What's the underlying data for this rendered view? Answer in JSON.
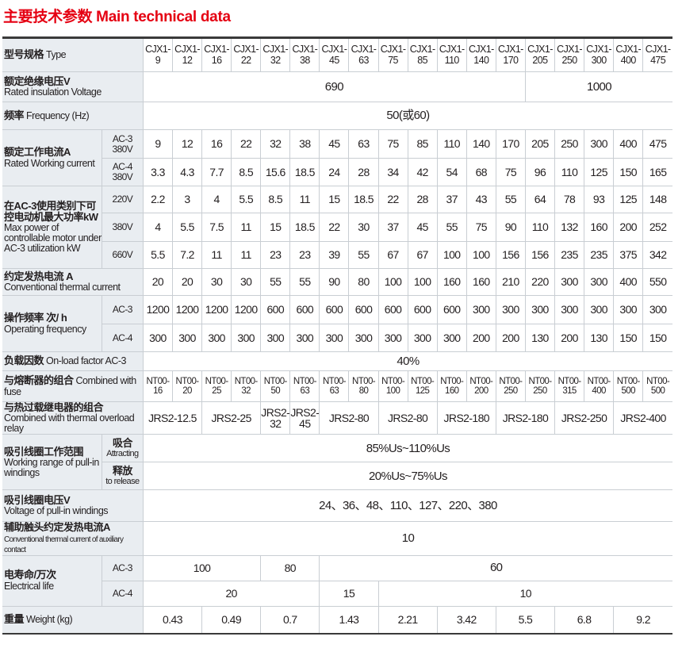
{
  "title": "主要技术参数 Main technical data",
  "header": {
    "label_cn": "型号规格",
    "label_en": "Type",
    "models": [
      "CJX1-9",
      "CJX1-12",
      "CJX1-16",
      "CJX1-22",
      "CJX1-32",
      "CJX1-38",
      "CJX1-45",
      "CJX1-63",
      "CJX1-75",
      "CJX1-85",
      "CJX1-110",
      "CJX1-140",
      "CJX1-170",
      "CJX1-205",
      "CJX1-250",
      "CJX1-300",
      "CJX1-400",
      "CJX1-475"
    ]
  },
  "sections": [
    {
      "label_cn": "额定绝缘电压V",
      "label_en": "Rated insulation Voltage",
      "rows": [
        {
          "sub": "",
          "cells": [
            [
              "690",
              13
            ],
            [
              "1000",
              5
            ]
          ]
        }
      ]
    },
    {
      "label_cn": "频率",
      "label_en": "Frequency  (Hz)",
      "inline": true,
      "rows": [
        {
          "sub": "",
          "cells": [
            [
              "50(或60)",
              18
            ]
          ]
        }
      ]
    },
    {
      "label_cn": "额定工作电流A",
      "label_en": "Rated Working current",
      "rows": [
        {
          "sub": "AC-3 380V",
          "cells": [
            [
              "9"
            ],
            [
              "12"
            ],
            [
              "16"
            ],
            [
              "22"
            ],
            [
              "32"
            ],
            [
              "38"
            ],
            [
              "45"
            ],
            [
              "63"
            ],
            [
              "75"
            ],
            [
              "85"
            ],
            [
              "110"
            ],
            [
              "140"
            ],
            [
              "170"
            ],
            [
              "205"
            ],
            [
              "250"
            ],
            [
              "300"
            ],
            [
              "400"
            ],
            [
              "475"
            ]
          ]
        },
        {
          "sub": "AC-4 380V",
          "cells": [
            [
              "3.3"
            ],
            [
              "4.3"
            ],
            [
              "7.7"
            ],
            [
              "8.5"
            ],
            [
              "15.6"
            ],
            [
              "18.5"
            ],
            [
              "24"
            ],
            [
              "28"
            ],
            [
              "34"
            ],
            [
              "42"
            ],
            [
              "54"
            ],
            [
              "68"
            ],
            [
              "75"
            ],
            [
              "96"
            ],
            [
              "110"
            ],
            [
              "125"
            ],
            [
              "150"
            ],
            [
              "165"
            ]
          ]
        }
      ]
    },
    {
      "label_cn": "在AC-3使用类别下可控电动机最大功率kW",
      "label_en": "Max power of controllable motor under AC-3 utilization kW",
      "rows": [
        {
          "sub": "220V",
          "cells": [
            [
              "2.2"
            ],
            [
              "3"
            ],
            [
              "4"
            ],
            [
              "5.5"
            ],
            [
              "8.5"
            ],
            [
              "11"
            ],
            [
              "15"
            ],
            [
              "18.5"
            ],
            [
              "22"
            ],
            [
              "28"
            ],
            [
              "37"
            ],
            [
              "43"
            ],
            [
              "55"
            ],
            [
              "64"
            ],
            [
              "78"
            ],
            [
              "93"
            ],
            [
              "125"
            ],
            [
              "148"
            ]
          ]
        },
        {
          "sub": "380V",
          "cells": [
            [
              "4"
            ],
            [
              "5.5"
            ],
            [
              "7.5"
            ],
            [
              "11"
            ],
            [
              "15"
            ],
            [
              "18.5"
            ],
            [
              "22"
            ],
            [
              "30"
            ],
            [
              "37"
            ],
            [
              "45"
            ],
            [
              "55"
            ],
            [
              "75"
            ],
            [
              "90"
            ],
            [
              "110"
            ],
            [
              "132"
            ],
            [
              "160"
            ],
            [
              "200"
            ],
            [
              "252"
            ]
          ]
        },
        {
          "sub": "660V",
          "cells": [
            [
              "5.5"
            ],
            [
              "7.2"
            ],
            [
              "11"
            ],
            [
              "11"
            ],
            [
              "23"
            ],
            [
              "23"
            ],
            [
              "39"
            ],
            [
              "55"
            ],
            [
              "67"
            ],
            [
              "67"
            ],
            [
              "100"
            ],
            [
              "100"
            ],
            [
              "156"
            ],
            [
              "156"
            ],
            [
              "235"
            ],
            [
              "235"
            ],
            [
              "375"
            ],
            [
              "342"
            ]
          ]
        }
      ]
    },
    {
      "label_cn": "约定发热电流 A",
      "label_en": "Conventional thermal current",
      "rows": [
        {
          "sub": "",
          "cells": [
            [
              "20"
            ],
            [
              "20"
            ],
            [
              "30"
            ],
            [
              "30"
            ],
            [
              "55"
            ],
            [
              "55"
            ],
            [
              "90"
            ],
            [
              "80"
            ],
            [
              "100"
            ],
            [
              "100"
            ],
            [
              "160"
            ],
            [
              "160"
            ],
            [
              "210"
            ],
            [
              "220"
            ],
            [
              "300"
            ],
            [
              "300"
            ],
            [
              "400"
            ],
            [
              "550"
            ]
          ]
        }
      ]
    },
    {
      "label_cn": "操作频率  次/ h",
      "label_en": "Operating frequency",
      "rows": [
        {
          "sub": "AC-3",
          "cells": [
            [
              "1200"
            ],
            [
              "1200"
            ],
            [
              "1200"
            ],
            [
              "1200"
            ],
            [
              "600"
            ],
            [
              "600"
            ],
            [
              "600"
            ],
            [
              "600"
            ],
            [
              "600"
            ],
            [
              "600"
            ],
            [
              "600"
            ],
            [
              "300"
            ],
            [
              "300"
            ],
            [
              "300"
            ],
            [
              "300"
            ],
            [
              "300"
            ],
            [
              "300"
            ],
            [
              "300"
            ]
          ]
        },
        {
          "sub": "AC-4",
          "cells": [
            [
              "300"
            ],
            [
              "300"
            ],
            [
              "300"
            ],
            [
              "300"
            ],
            [
              "300"
            ],
            [
              "300"
            ],
            [
              "300"
            ],
            [
              "300"
            ],
            [
              "300"
            ],
            [
              "300"
            ],
            [
              "300"
            ],
            [
              "200"
            ],
            [
              "200"
            ],
            [
              "130"
            ],
            [
              "200"
            ],
            [
              "130"
            ],
            [
              "150"
            ],
            [
              "150"
            ]
          ]
        }
      ]
    },
    {
      "label_cn": "负载因数",
      "label_en": "On-load factor  AC-3",
      "inline": true,
      "rows": [
        {
          "sub": "",
          "cells": [
            [
              "40%",
              18
            ]
          ]
        }
      ]
    },
    {
      "label_cn": "与熔断器的组合",
      "label_en": "Combined with fuse",
      "inline": true,
      "fuse": true,
      "rows": [
        {
          "sub": "",
          "cells": [
            [
              "NT00-16"
            ],
            [
              "NT00-20"
            ],
            [
              "NT00-25"
            ],
            [
              "NT00-32"
            ],
            [
              "NT00-50"
            ],
            [
              "NT00-63"
            ],
            [
              "NT00-63"
            ],
            [
              "NT00-80"
            ],
            [
              "NT00-100"
            ],
            [
              "NT00-125"
            ],
            [
              "NT00-160"
            ],
            [
              "NT00-200"
            ],
            [
              "NT00-250"
            ],
            [
              "NT00-250"
            ],
            [
              "NT00-315"
            ],
            [
              "NT00-400"
            ],
            [
              "NT00-500"
            ],
            [
              "NT00-500"
            ]
          ]
        }
      ]
    },
    {
      "label_cn": "与热过载继电器的组合",
      "label_en": "Combined with thermal overload relay",
      "rows": [
        {
          "sub": "",
          "cells": [
            [
              "JRS2-12.5",
              2
            ],
            [
              "JRS2-25",
              2
            ],
            [
              "JRS2-32",
              1
            ],
            [
              "JRS2-45",
              1
            ],
            [
              "JRS2-80",
              2
            ],
            [
              "JRS2-80",
              2
            ],
            [
              "JRS2-180",
              2
            ],
            [
              "JRS2-180",
              2
            ],
            [
              "JRS2-250",
              2
            ],
            [
              "JRS2-400",
              2
            ]
          ]
        }
      ]
    },
    {
      "label_cn": "吸引线圈工作范围",
      "label_en": "Working range of pull-in windings",
      "rows": [
        {
          "sub": "吸合 Attracting",
          "cells": [
            [
              "85%Us~110%Us",
              18
            ]
          ]
        },
        {
          "sub": "释放 to release",
          "cells": [
            [
              "20%Us~75%Us",
              18
            ]
          ]
        }
      ]
    },
    {
      "label_cn": "吸引线圈电压V",
      "label_en": "Voltage of pull-in windings",
      "rows": [
        {
          "sub": "",
          "cells": [
            [
              "24、36、48、110、127、220、380",
              18
            ]
          ]
        }
      ]
    },
    {
      "label_cn": "辅助触头约定发热电流A",
      "label_en": "Conventional thermal current of auxiliary contact",
      "small": true,
      "rows": [
        {
          "sub": "",
          "cells": [
            [
              "10",
              18
            ]
          ]
        }
      ]
    },
    {
      "label_cn": "电寿命/万次",
      "label_en": "Electrical life",
      "rows": [
        {
          "sub": "AC-3",
          "cells": [
            [
              "100",
              4
            ],
            [
              "80",
              2
            ],
            [
              "60",
              12
            ]
          ]
        },
        {
          "sub": "AC-4",
          "cells": [
            [
              "20",
              6
            ],
            [
              "15",
              2
            ],
            [
              "10",
              10
            ]
          ]
        }
      ]
    },
    {
      "label_cn": "重量",
      "label_en": "Weight (kg)",
      "inline": true,
      "rows": [
        {
          "sub": "",
          "cells": [
            [
              "0.43",
              2
            ],
            [
              "0.49",
              2
            ],
            [
              "0.7",
              2
            ],
            [
              "1.43",
              2
            ],
            [
              "2.21",
              2
            ],
            [
              "3.42",
              2
            ],
            [
              "5.5",
              2
            ],
            [
              "6.8",
              2
            ],
            [
              "9.2",
              2
            ]
          ]
        }
      ]
    }
  ]
}
